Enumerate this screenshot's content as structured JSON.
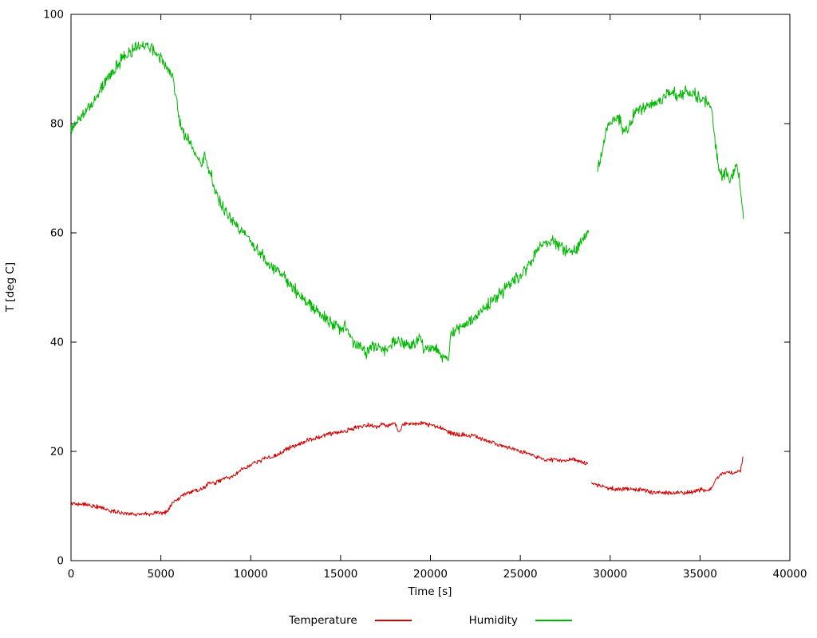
{
  "chart_data": {
    "type": "line",
    "title": "",
    "xlabel": "Time [s]",
    "ylabel": "T [deg C]",
    "xlim": [
      0,
      40000
    ],
    "ylim": [
      0,
      100
    ],
    "xticks": [
      0,
      5000,
      10000,
      15000,
      20000,
      25000,
      30000,
      35000,
      40000
    ],
    "yticks": [
      0,
      20,
      40,
      60,
      80,
      100
    ],
    "grid": false,
    "legend_position": "bottom-center",
    "axis_color": "#000000",
    "series": [
      {
        "name": "Temperature",
        "color": "#d40000",
        "noise": 0.35,
        "segments": [
          [
            [
              0,
              10.5
            ],
            [
              400,
              10.3
            ],
            [
              800,
              10.4
            ],
            [
              1200,
              10.0
            ],
            [
              1700,
              9.6
            ],
            [
              2200,
              9.1
            ],
            [
              2700,
              8.8
            ],
            [
              3200,
              8.6
            ],
            [
              3800,
              8.5
            ],
            [
              4400,
              8.6
            ],
            [
              5000,
              8.8
            ],
            [
              5400,
              9.0
            ],
            [
              5600,
              10.4
            ],
            [
              5900,
              11.1
            ],
            [
              6100,
              11.6
            ],
            [
              6300,
              12.3
            ],
            [
              6600,
              12.5
            ],
            [
              7000,
              12.9
            ],
            [
              7400,
              13.3
            ],
            [
              7600,
              14.0
            ],
            [
              8000,
              14.2
            ],
            [
              8500,
              15.0
            ],
            [
              9000,
              15.4
            ],
            [
              9400,
              16.4
            ],
            [
              9800,
              17.1
            ],
            [
              10200,
              17.9
            ],
            [
              10600,
              18.4
            ],
            [
              11000,
              18.9
            ],
            [
              11500,
              19.4
            ],
            [
              12000,
              20.4
            ],
            [
              12500,
              21.0
            ],
            [
              13000,
              21.8
            ],
            [
              13500,
              22.3
            ],
            [
              14000,
              22.9
            ],
            [
              14500,
              23.3
            ],
            [
              15000,
              23.5
            ],
            [
              15500,
              24.0
            ],
            [
              16000,
              24.5
            ],
            [
              16500,
              24.8
            ],
            [
              17000,
              24.5
            ],
            [
              17300,
              25.0
            ],
            [
              17700,
              24.8
            ],
            [
              18000,
              25.1
            ],
            [
              18250,
              23.6
            ],
            [
              18500,
              25.0
            ],
            [
              19000,
              25.0
            ],
            [
              19500,
              25.2
            ],
            [
              20000,
              24.8
            ],
            [
              20500,
              24.4
            ],
            [
              21000,
              23.6
            ],
            [
              21500,
              23.1
            ],
            [
              22000,
              23.0
            ],
            [
              22500,
              22.8
            ],
            [
              23000,
              22.1
            ],
            [
              23500,
              21.6
            ],
            [
              24000,
              21.0
            ],
            [
              24500,
              20.5
            ],
            [
              25000,
              20.0
            ],
            [
              25500,
              19.5
            ],
            [
              26000,
              18.9
            ],
            [
              26400,
              18.5
            ],
            [
              27000,
              18.5
            ],
            [
              27500,
              18.3
            ],
            [
              28000,
              18.5
            ],
            [
              28300,
              18.2
            ],
            [
              28750,
              17.7
            ]
          ],
          [
            [
              28950,
              14.2
            ],
            [
              29300,
              13.8
            ],
            [
              29700,
              13.4
            ],
            [
              30100,
              13.2
            ],
            [
              30500,
              13.0
            ],
            [
              31000,
              13.2
            ],
            [
              31500,
              13.0
            ],
            [
              32000,
              12.8
            ],
            [
              32500,
              12.5
            ],
            [
              33000,
              12.5
            ],
            [
              33500,
              12.3
            ],
            [
              34000,
              12.5
            ],
            [
              34500,
              12.5
            ],
            [
              35000,
              13.0
            ],
            [
              35300,
              12.8
            ],
            [
              35600,
              13.1
            ],
            [
              35850,
              14.6
            ],
            [
              36100,
              15.6
            ],
            [
              36300,
              16.0
            ],
            [
              36600,
              16.2
            ],
            [
              36900,
              16.0
            ],
            [
              37100,
              16.3
            ],
            [
              37250,
              16.6
            ],
            [
              37400,
              19.0
            ]
          ]
        ]
      },
      {
        "name": "Humidity",
        "color": "#00b800",
        "noise": 1.0,
        "segments": [
          [
            [
              0,
              78.5
            ],
            [
              300,
              80.5
            ],
            [
              700,
              82.0
            ],
            [
              1100,
              83.5
            ],
            [
              1600,
              86.0
            ],
            [
              2100,
              88.5
            ],
            [
              2600,
              91.0
            ],
            [
              3100,
              92.5
            ],
            [
              3600,
              94.0
            ],
            [
              4000,
              94.5
            ],
            [
              4400,
              94.0
            ],
            [
              4800,
              92.8
            ],
            [
              5100,
              91.5
            ],
            [
              5400,
              90.0
            ],
            [
              5700,
              87.5
            ],
            [
              5900,
              84.0
            ],
            [
              6050,
              80.5
            ],
            [
              6300,
              78.0
            ],
            [
              6600,
              77.0
            ],
            [
              7000,
              74.0
            ],
            [
              7250,
              72.0
            ],
            [
              7450,
              74.0
            ],
            [
              7700,
              71.5
            ],
            [
              8100,
              67.0
            ],
            [
              8600,
              64.0
            ],
            [
              9100,
              62.0
            ],
            [
              9600,
              60.0
            ],
            [
              10100,
              58.0
            ],
            [
              10600,
              56.0
            ],
            [
              11100,
              54.0
            ],
            [
              11600,
              53.0
            ],
            [
              12100,
              51.0
            ],
            [
              12600,
              49.0
            ],
            [
              13100,
              47.5
            ],
            [
              13600,
              46.0
            ],
            [
              14100,
              44.5
            ],
            [
              14600,
              43.5
            ],
            [
              15000,
              42.5
            ],
            [
              15300,
              43.0
            ],
            [
              15700,
              40.0
            ],
            [
              16100,
              39.5
            ],
            [
              16400,
              38.0
            ],
            [
              16800,
              39.5
            ],
            [
              17200,
              38.5
            ],
            [
              17600,
              38.5
            ],
            [
              18000,
              40.0
            ],
            [
              18300,
              40.5
            ],
            [
              18700,
              39.0
            ],
            [
              19100,
              39.5
            ],
            [
              19400,
              40.5
            ],
            [
              19700,
              38.5
            ],
            [
              20100,
              39.0
            ],
            [
              20400,
              38.5
            ],
            [
              20750,
              36.8
            ],
            [
              21000,
              37.2
            ],
            [
              21150,
              41.5
            ],
            [
              21600,
              42.5
            ],
            [
              22100,
              43.5
            ],
            [
              22600,
              45.0
            ],
            [
              23100,
              46.5
            ],
            [
              23600,
              48.0
            ],
            [
              24100,
              49.5
            ],
            [
              24600,
              51.0
            ],
            [
              25100,
              52.5
            ],
            [
              25400,
              53.5
            ],
            [
              25700,
              55.5
            ],
            [
              26100,
              57.5
            ],
            [
              26400,
              58.0
            ],
            [
              26800,
              58.5
            ],
            [
              27100,
              58.0
            ],
            [
              27400,
              57.0
            ],
            [
              27800,
              56.5
            ],
            [
              28100,
              57.0
            ],
            [
              28400,
              58.5
            ],
            [
              28800,
              60.5
            ]
          ],
          [
            [
              29300,
              71.0
            ],
            [
              29550,
              75.0
            ],
            [
              29800,
              79.0
            ],
            [
              30050,
              80.5
            ],
            [
              30350,
              81.0
            ],
            [
              30550,
              80.5
            ],
            [
              30750,
              78.5
            ],
            [
              31050,
              79.0
            ],
            [
              31350,
              82.0
            ],
            [
              31750,
              82.5
            ],
            [
              32050,
              83.0
            ],
            [
              32350,
              83.5
            ],
            [
              32750,
              84.0
            ],
            [
              33050,
              85.5
            ],
            [
              33350,
              86.0
            ],
            [
              33700,
              85.0
            ],
            [
              34050,
              85.5
            ],
            [
              34350,
              86.0
            ],
            [
              34600,
              85.5
            ],
            [
              35050,
              84.5
            ],
            [
              35350,
              84.0
            ],
            [
              35650,
              83.0
            ],
            [
              35850,
              76.0
            ],
            [
              36050,
              72.0
            ],
            [
              36250,
              70.0
            ],
            [
              36450,
              71.5
            ],
            [
              36650,
              69.5
            ],
            [
              36850,
              71.0
            ],
            [
              37050,
              73.0
            ],
            [
              37150,
              71.0
            ],
            [
              37300,
              66.0
            ],
            [
              37420,
              62.5
            ]
          ]
        ]
      }
    ]
  }
}
